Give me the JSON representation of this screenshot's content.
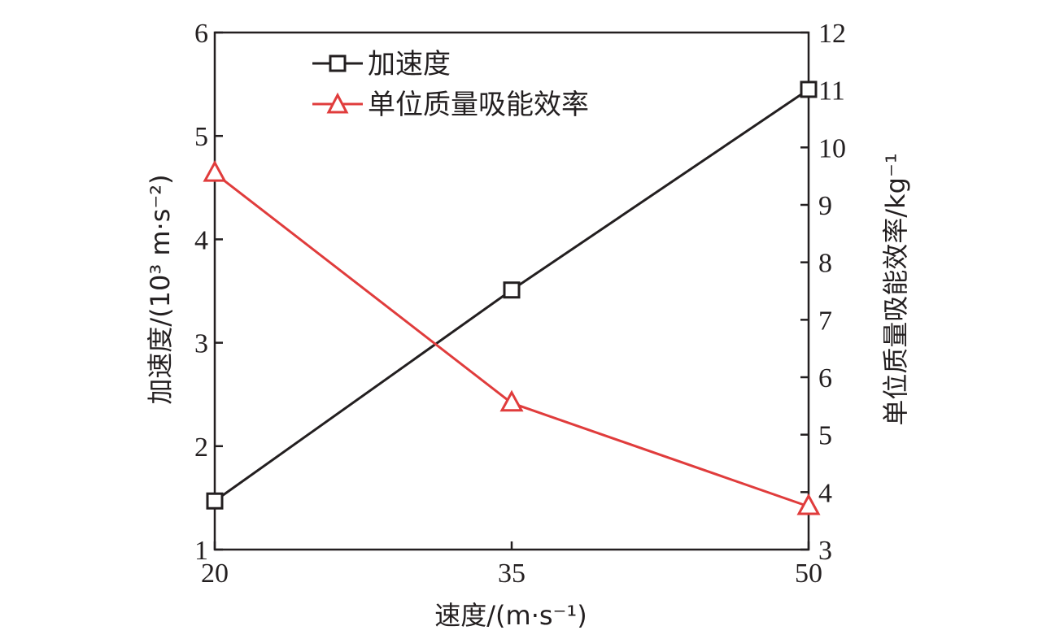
{
  "chart_data": {
    "type": "line",
    "categories": [
      "20",
      "35",
      "50"
    ],
    "x": [
      20,
      35,
      50
    ],
    "xlabel": "速度/(m·s⁻¹)",
    "ylabel": "加速度/(10³ m·s⁻²)",
    "y2label": "单位质量吸能效率/kg⁻¹",
    "ylim": [
      1,
      6
    ],
    "y2lim": [
      3,
      12
    ],
    "yticks": [
      "1",
      "2",
      "3",
      "4",
      "5",
      "6"
    ],
    "y2ticks": [
      "3",
      "4",
      "5",
      "6",
      "7",
      "8",
      "9",
      "10",
      "11",
      "12"
    ],
    "legend_position": "top-left",
    "grid": false,
    "series": [
      {
        "name": "加速度",
        "axis": "left",
        "marker": "square",
        "color": "#231f20",
        "values": [
          1.47,
          3.51,
          5.45
        ]
      },
      {
        "name": "单位质量吸能效率",
        "axis": "right",
        "marker": "triangle",
        "color": "#e03c3c",
        "values": [
          9.55,
          5.55,
          3.75
        ]
      }
    ]
  }
}
